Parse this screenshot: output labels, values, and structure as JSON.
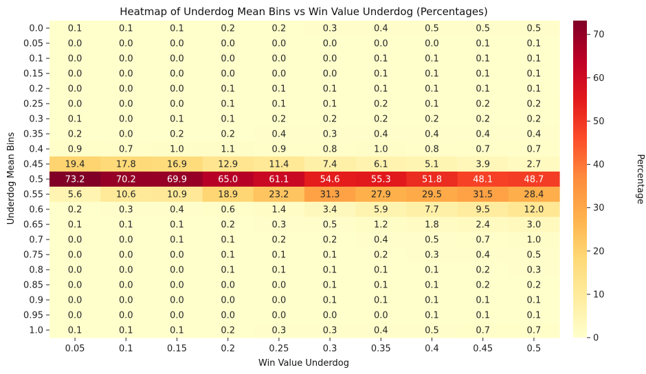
{
  "chart_data": {
    "type": "heatmap",
    "title": "Heatmap of Underdog Mean Bins vs Win Value Underdog (Percentages)",
    "xlabel": "Win Value Underdog",
    "ylabel": "Underdog Mean Bins",
    "x_categories": [
      "0.05",
      "0.1",
      "0.15",
      "0.2",
      "0.25",
      "0.3",
      "0.35",
      "0.4",
      "0.45",
      "0.5"
    ],
    "y_categories": [
      "0.0",
      "0.05",
      "0.1",
      "0.15",
      "0.2",
      "0.25",
      "0.3",
      "0.35",
      "0.4",
      "0.45",
      "0.5",
      "0.55",
      "0.6",
      "0.65",
      "0.7",
      "0.75",
      "0.8",
      "0.85",
      "0.9",
      "0.95",
      "1.0"
    ],
    "values": [
      [
        0.1,
        0.1,
        0.1,
        0.2,
        0.2,
        0.3,
        0.4,
        0.5,
        0.5,
        0.5
      ],
      [
        0.0,
        0.0,
        0.0,
        0.0,
        0.0,
        0.0,
        0.0,
        0.0,
        0.1,
        0.1
      ],
      [
        0.0,
        0.0,
        0.0,
        0.0,
        0.0,
        0.0,
        0.1,
        0.1,
        0.1,
        0.1
      ],
      [
        0.0,
        0.0,
        0.0,
        0.0,
        0.0,
        0.0,
        0.1,
        0.1,
        0.1,
        0.1
      ],
      [
        0.0,
        0.0,
        0.0,
        0.1,
        0.1,
        0.1,
        0.1,
        0.1,
        0.1,
        0.1
      ],
      [
        0.0,
        0.0,
        0.0,
        0.1,
        0.1,
        0.1,
        0.2,
        0.1,
        0.2,
        0.2
      ],
      [
        0.1,
        0.0,
        0.1,
        0.1,
        0.2,
        0.2,
        0.2,
        0.2,
        0.2,
        0.2
      ],
      [
        0.2,
        0.0,
        0.2,
        0.2,
        0.4,
        0.3,
        0.4,
        0.4,
        0.4,
        0.4
      ],
      [
        0.9,
        0.7,
        1.0,
        1.1,
        0.9,
        0.8,
        1.0,
        0.8,
        0.7,
        0.7
      ],
      [
        19.4,
        17.8,
        16.9,
        12.9,
        11.4,
        7.4,
        6.1,
        5.1,
        3.9,
        2.7
      ],
      [
        73.2,
        70.2,
        69.9,
        65.0,
        61.1,
        54.6,
        55.3,
        51.8,
        48.1,
        48.7
      ],
      [
        5.6,
        10.6,
        10.9,
        18.9,
        23.2,
        31.3,
        27.9,
        29.5,
        31.5,
        28.4
      ],
      [
        0.2,
        0.3,
        0.4,
        0.6,
        1.4,
        3.4,
        5.9,
        7.7,
        9.5,
        12.0
      ],
      [
        0.1,
        0.1,
        0.1,
        0.2,
        0.3,
        0.5,
        1.2,
        1.8,
        2.4,
        3.0
      ],
      [
        0.0,
        0.0,
        0.1,
        0.1,
        0.2,
        0.2,
        0.4,
        0.5,
        0.7,
        1.0
      ],
      [
        0.0,
        0.0,
        0.0,
        0.1,
        0.1,
        0.1,
        0.2,
        0.3,
        0.4,
        0.5
      ],
      [
        0.0,
        0.0,
        0.0,
        0.1,
        0.1,
        0.1,
        0.1,
        0.1,
        0.2,
        0.3
      ],
      [
        0.0,
        0.0,
        0.0,
        0.0,
        0.0,
        0.1,
        0.1,
        0.1,
        0.2,
        0.2
      ],
      [
        0.0,
        0.0,
        0.0,
        0.0,
        0.0,
        0.1,
        0.1,
        0.1,
        0.1,
        0.1
      ],
      [
        0.0,
        0.0,
        0.0,
        0.0,
        0.0,
        0.0,
        0.0,
        0.1,
        0.1,
        0.1
      ],
      [
        0.1,
        0.1,
        0.1,
        0.2,
        0.3,
        0.3,
        0.4,
        0.5,
        0.7,
        0.7
      ]
    ],
    "colorscale": "YlOrRd",
    "color_range": [
      0,
      73.2
    ],
    "colorbar": {
      "label": "Percentage",
      "ticks": [
        "0",
        "10",
        "20",
        "30",
        "40",
        "50",
        "60",
        "70"
      ]
    },
    "grid": false
  }
}
